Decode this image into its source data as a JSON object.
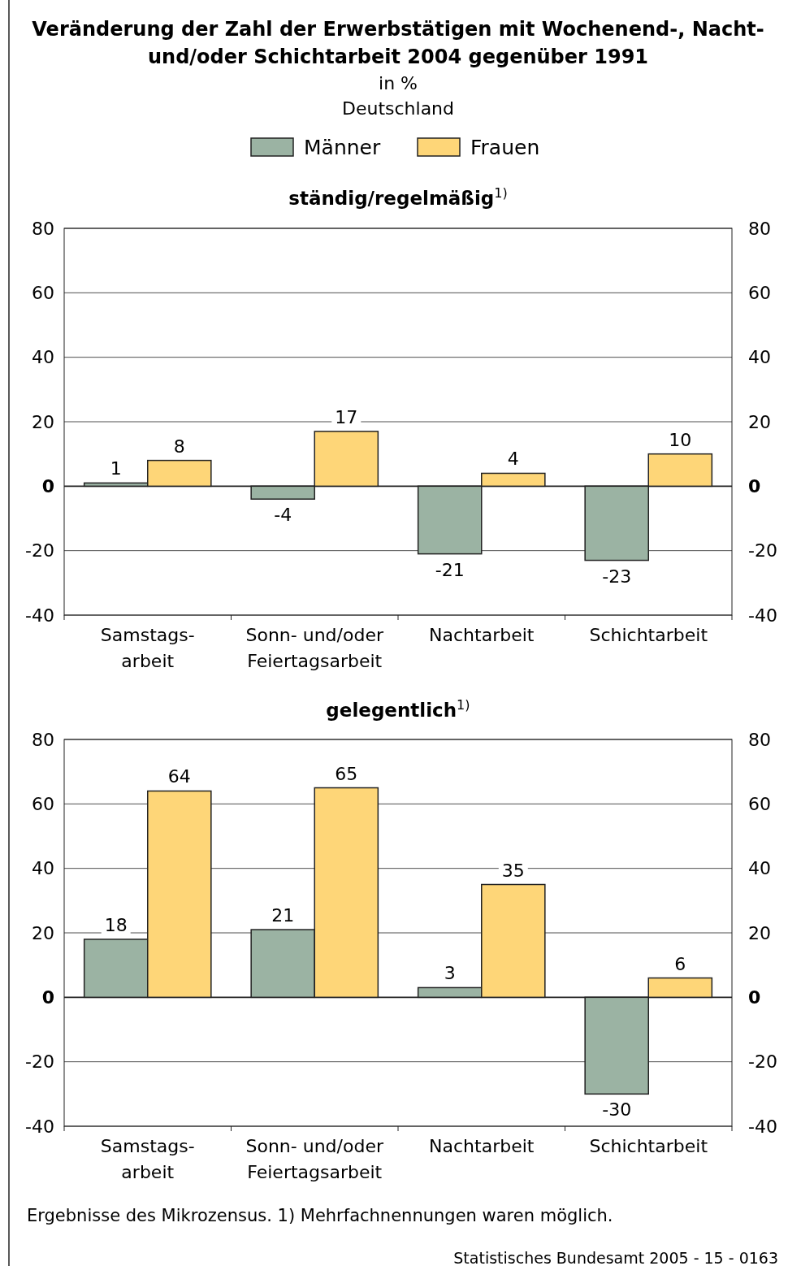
{
  "chart_data": [
    {
      "type": "bar",
      "title": "Veränderung der Zahl der Erwerbstätigen mit Wochenend-, Nacht-\nund/oder Schichtarbeit 2004 gegenüber 1991",
      "subtitle": "ständig/regelmäßig$^{1)}$",
      "annotations": [
        "in %",
        "Deutschland"
      ],
      "categories": [
        "Samstags-\narbeit",
        "Sonn- und/oder\nFeiertagsarbeit",
        "Nachtarbeit",
        "Schichtarbeit"
      ],
      "series": [
        {
          "name": "Männer",
          "color": "#9bb3a3",
          "values": [
            1,
            -4,
            -21,
            -23
          ]
        },
        {
          "name": "Frauen",
          "color": "#fed678",
          "values": [
            8,
            17,
            4,
            10
          ]
        }
      ],
      "ylim": [
        -40,
        80
      ],
      "yticks": [
        -40,
        -20,
        0,
        20,
        40,
        60,
        80
      ],
      "y2lim": [
        -40,
        80
      ],
      "y2ticks": [
        -40,
        -20,
        0,
        20,
        40,
        60,
        80
      ],
      "grid": "y",
      "legend": "top",
      "data_labels": true
    },
    {
      "type": "bar",
      "title": "gelegentlich$^{1)}$",
      "annotations": [
        "Ergebnisse des Mikrozensus. 1) Mehrfachnennungen waren möglich.",
        "Statistisches Bundesamt 2005 - 15 - 0163"
      ],
      "categories": [
        "Samstags-\narbeit",
        "Sonn- und/oder\nFeiertagsarbeit",
        "Nachtarbeit",
        "Schichtarbeit"
      ],
      "series": [
        {
          "color": "#9bb3a3",
          "values": [
            18,
            21,
            3,
            -30
          ]
        },
        {
          "color": "#fed678",
          "values": [
            64,
            65,
            35,
            6
          ]
        }
      ],
      "ylim": [
        -40,
        80
      ],
      "yticks": [
        -40,
        -20,
        0,
        20,
        40,
        60,
        80
      ],
      "y2lim": [
        -40,
        80
      ],
      "y2ticks": [
        -40,
        -20,
        0,
        20,
        40,
        60,
        80
      ],
      "grid": "y",
      "data_labels": true
    }
  ]
}
